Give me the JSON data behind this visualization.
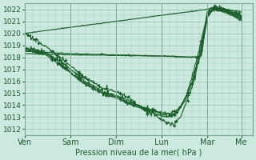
{
  "title": "",
  "xlabel": "Pression niveau de la mer( hPa )",
  "ylabel": "",
  "bg_color": "#cce8df",
  "plot_bg_color": "#cce8df",
  "grid_color": "#99ccbb",
  "line_color": "#1a5e2a",
  "ylim": [
    1011.5,
    1022.5
  ],
  "yticks": [
    1012,
    1013,
    1014,
    1015,
    1016,
    1017,
    1018,
    1019,
    1020,
    1021,
    1022
  ],
  "day_labels": [
    "Ven",
    "Sam",
    "Dim",
    "Lun",
    "Mar",
    "Me"
  ],
  "day_positions": [
    0,
    24,
    48,
    72,
    96,
    114
  ],
  "xlim": [
    0,
    120
  ]
}
